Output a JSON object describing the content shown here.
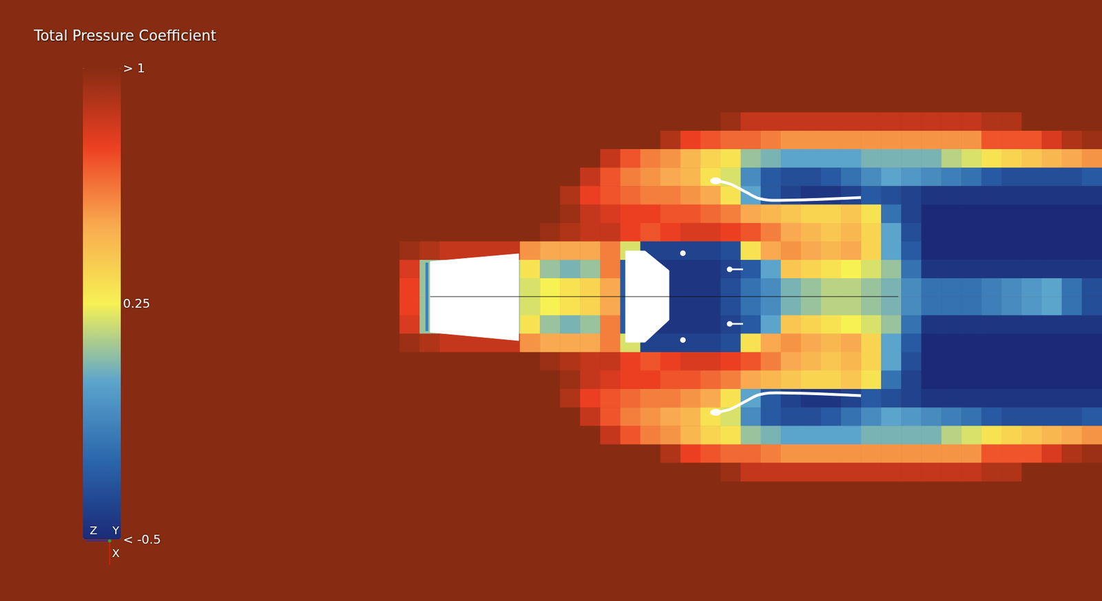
{
  "chart_data": {
    "type": "heatmap",
    "title": "Total Pressure Coefficient",
    "tick_labels": false,
    "triad_labels": [
      "Z",
      "Y",
      "X"
    ],
    "colorbar": {
      "range": [
        -0.5,
        1
      ],
      "ticks": [
        {
          "value": 1,
          "label": "> 1"
        },
        {
          "value": 0.25,
          "label": "0.25"
        },
        {
          "value": -0.5,
          "label": "< -0.5"
        }
      ],
      "colors": [
        "#1b2a78",
        "#2a66ac",
        "#5ba4cc",
        "#f7f153",
        "#f9a94f",
        "#ec3f22",
        "#872c12"
      ]
    },
    "cells": [
      [
        1,
        1,
        1,
        1,
        1,
        1,
        1,
        1,
        1,
        1,
        1,
        1,
        1,
        1,
        1,
        1,
        1,
        0.95,
        0.85,
        0.85,
        0.85,
        0.85,
        0.85,
        0.85,
        0.85,
        0.85,
        0.85,
        0.85,
        0.85,
        0.85,
        0.9,
        0.9,
        1,
        1,
        1,
        1
      ],
      [
        1,
        1,
        1,
        1,
        1,
        1,
        1,
        1,
        1,
        1,
        1,
        1,
        1,
        1,
        0.9,
        0.75,
        0.7,
        0.65,
        0.65,
        0.6,
        0.55,
        0.55,
        0.55,
        0.55,
        0.55,
        0.55,
        0.55,
        0.55,
        0.55,
        0.55,
        0.7,
        0.7,
        0.7,
        0.8,
        0.9,
        0.95
      ],
      [
        1,
        1,
        1,
        1,
        1,
        1,
        1,
        1,
        1,
        1,
        1,
        0.85,
        0.7,
        0.6,
        0.55,
        0.45,
        0.35,
        0.3,
        0.1,
        0.05,
        0,
        0,
        0,
        0,
        0.05,
        0.05,
        0.05,
        0.05,
        0.15,
        0.2,
        0.3,
        0.35,
        0.4,
        0.45,
        0.5,
        0.55
      ],
      [
        1,
        1,
        1,
        1,
        1,
        1,
        1,
        1,
        1,
        1,
        0.85,
        0.7,
        0.6,
        0.55,
        0.5,
        0.45,
        0.3,
        0.2,
        -0.1,
        -0.3,
        -0.35,
        -0.35,
        -0.3,
        -0.2,
        -0.1,
        0,
        -0.05,
        -0.1,
        -0.15,
        -0.2,
        -0.3,
        -0.35,
        -0.35,
        -0.35,
        -0.35,
        -0.3
      ],
      [
        1,
        1,
        1,
        1,
        1,
        1,
        1,
        1,
        1,
        0.9,
        0.75,
        0.7,
        0.65,
        0.6,
        0.6,
        0.55,
        0.5,
        0.3,
        0,
        -0.3,
        -0.4,
        -0.45,
        -0.45,
        -0.4,
        -0.3,
        -0.35,
        -0.4,
        -0.45,
        -0.45,
        -0.45,
        -0.45,
        -0.45,
        -0.45,
        -0.45,
        -0.45,
        -0.45
      ],
      [
        1,
        1,
        1,
        1,
        1,
        1,
        1,
        1,
        1,
        0.95,
        0.85,
        0.8,
        0.75,
        0.75,
        0.7,
        0.7,
        0.65,
        0.6,
        0.5,
        0.45,
        0.4,
        0.35,
        0.35,
        0.4,
        0.3,
        -0.2,
        -0.4,
        -0.5,
        -0.5,
        -0.5,
        -0.5,
        -0.5,
        -0.5,
        -0.5,
        -0.5,
        -0.5
      ],
      [
        1,
        1,
        1,
        1,
        1,
        1,
        1,
        1,
        0.95,
        0.9,
        0.85,
        0.85,
        0.75,
        0.7,
        0.75,
        0.8,
        0.8,
        0.75,
        0.7,
        0.6,
        0.5,
        0.45,
        0.4,
        0.45,
        0.35,
        0,
        -0.35,
        -0.5,
        -0.5,
        -0.5,
        -0.5,
        -0.5,
        -0.5,
        -0.5,
        -0.5,
        -0.5
      ],
      [
        1,
        0.95,
        0.9,
        0.85,
        0.85,
        0.85,
        0.85,
        0.55,
        0.5,
        0.5,
        0.5,
        0.6,
        0.2,
        -0.4,
        -0.4,
        -0.4,
        -0.4,
        -0.35,
        0.3,
        0.5,
        0.55,
        0.5,
        0.45,
        0.5,
        0.35,
        0,
        -0.3,
        -0.5,
        -0.5,
        -0.5,
        -0.5,
        -0.5,
        -0.5,
        -0.5,
        -0.5,
        -0.5
      ],
      [
        1,
        0.8,
        0.1,
        0.1,
        0.1,
        0.1,
        0.1,
        0.3,
        0.1,
        0.05,
        0.1,
        0.6,
        -0.3,
        -0.45,
        -0.45,
        -0.45,
        -0.45,
        -0.4,
        -0.3,
        0,
        0.4,
        0.35,
        0.3,
        0.25,
        0.2,
        0.1,
        -0.2,
        -0.45,
        -0.45,
        -0.45,
        -0.45,
        -0.45,
        -0.45,
        -0.45,
        -0.45,
        -0.45
      ],
      [
        1,
        0.75,
        0.1,
        0.1,
        0.1,
        0.1,
        0.1,
        0.2,
        0.25,
        0.3,
        0.35,
        0.5,
        -0.3,
        -0.45,
        -0.45,
        -0.45,
        -0.45,
        -0.35,
        -0.2,
        -0.1,
        0.05,
        0.1,
        0.15,
        0.15,
        0.1,
        0.05,
        -0.1,
        -0.2,
        -0.2,
        -0.2,
        -0.15,
        -0.1,
        -0.05,
        0,
        -0.2,
        -0.35
      ],
      [
        1,
        0.75,
        0.1,
        0.1,
        0.1,
        0.1,
        0.1,
        0.2,
        0.25,
        0.3,
        0.35,
        0.5,
        -0.3,
        -0.45,
        -0.45,
        -0.45,
        -0.45,
        -0.35,
        -0.2,
        -0.1,
        0.05,
        0.1,
        0.15,
        0.15,
        0.1,
        0.05,
        -0.1,
        -0.2,
        -0.2,
        -0.2,
        -0.15,
        -0.1,
        -0.05,
        0,
        -0.2,
        -0.35
      ],
      [
        1,
        0.8,
        0.1,
        0.1,
        0.1,
        0.1,
        0.1,
        0.3,
        0.1,
        0.05,
        0.1,
        0.6,
        -0.3,
        -0.45,
        -0.45,
        -0.45,
        -0.45,
        -0.4,
        -0.3,
        0,
        0.4,
        0.35,
        0.3,
        0.25,
        0.2,
        0.1,
        -0.2,
        -0.45,
        -0.45,
        -0.45,
        -0.45,
        -0.45,
        -0.45,
        -0.45,
        -0.45,
        -0.45
      ],
      [
        1,
        0.95,
        0.9,
        0.85,
        0.85,
        0.85,
        0.85,
        0.55,
        0.5,
        0.5,
        0.5,
        0.6,
        0.2,
        -0.4,
        -0.4,
        -0.4,
        -0.4,
        -0.35,
        0.3,
        0.5,
        0.55,
        0.5,
        0.45,
        0.5,
        0.35,
        0,
        -0.3,
        -0.5,
        -0.5,
        -0.5,
        -0.5,
        -0.5,
        -0.5,
        -0.5,
        -0.5,
        -0.5
      ],
      [
        1,
        1,
        1,
        1,
        1,
        1,
        1,
        1,
        0.95,
        0.9,
        0.85,
        0.85,
        0.75,
        0.7,
        0.75,
        0.8,
        0.8,
        0.75,
        0.7,
        0.6,
        0.5,
        0.45,
        0.4,
        0.45,
        0.35,
        0,
        -0.35,
        -0.5,
        -0.5,
        -0.5,
        -0.5,
        -0.5,
        -0.5,
        -0.5,
        -0.5,
        -0.5
      ],
      [
        1,
        1,
        1,
        1,
        1,
        1,
        1,
        1,
        1,
        0.95,
        0.85,
        0.8,
        0.75,
        0.75,
        0.7,
        0.7,
        0.65,
        0.6,
        0.5,
        0.45,
        0.4,
        0.35,
        0.35,
        0.4,
        0.3,
        -0.2,
        -0.4,
        -0.5,
        -0.5,
        -0.5,
        -0.5,
        -0.5,
        -0.5,
        -0.5,
        -0.5,
        -0.5
      ],
      [
        1,
        1,
        1,
        1,
        1,
        1,
        1,
        1,
        1,
        0.9,
        0.75,
        0.7,
        0.65,
        0.6,
        0.6,
        0.55,
        0.5,
        0.3,
        0,
        -0.3,
        -0.4,
        -0.45,
        -0.45,
        -0.4,
        -0.3,
        -0.35,
        -0.4,
        -0.45,
        -0.45,
        -0.45,
        -0.45,
        -0.45,
        -0.45,
        -0.45,
        -0.45,
        -0.45
      ],
      [
        1,
        1,
        1,
        1,
        1,
        1,
        1,
        1,
        1,
        1,
        0.85,
        0.7,
        0.6,
        0.55,
        0.5,
        0.45,
        0.3,
        0.2,
        -0.1,
        -0.3,
        -0.35,
        -0.35,
        -0.3,
        -0.2,
        -0.1,
        0,
        -0.05,
        -0.1,
        -0.15,
        -0.2,
        -0.3,
        -0.35,
        -0.35,
        -0.35,
        -0.35,
        -0.3
      ],
      [
        1,
        1,
        1,
        1,
        1,
        1,
        1,
        1,
        1,
        1,
        1,
        0.85,
        0.7,
        0.6,
        0.55,
        0.45,
        0.35,
        0.3,
        0.1,
        0.05,
        0,
        0,
        0,
        0,
        0.05,
        0.05,
        0.05,
        0.05,
        0.15,
        0.2,
        0.3,
        0.35,
        0.4,
        0.45,
        0.5,
        0.55
      ],
      [
        1,
        1,
        1,
        1,
        1,
        1,
        1,
        1,
        1,
        1,
        1,
        1,
        1,
        1,
        0.9,
        0.75,
        0.7,
        0.65,
        0.65,
        0.6,
        0.55,
        0.55,
        0.55,
        0.55,
        0.55,
        0.55,
        0.55,
        0.55,
        0.55,
        0.55,
        0.7,
        0.7,
        0.7,
        0.8,
        0.9,
        0.95
      ],
      [
        1,
        1,
        1,
        1,
        1,
        1,
        1,
        1,
        1,
        1,
        1,
        1,
        1,
        1,
        1,
        1,
        1,
        0.95,
        0.85,
        0.85,
        0.85,
        0.85,
        0.85,
        0.85,
        0.85,
        0.85,
        0.85,
        0.85,
        0.85,
        0.85,
        0.9,
        0.9,
        1,
        1,
        1,
        1
      ]
    ]
  }
}
